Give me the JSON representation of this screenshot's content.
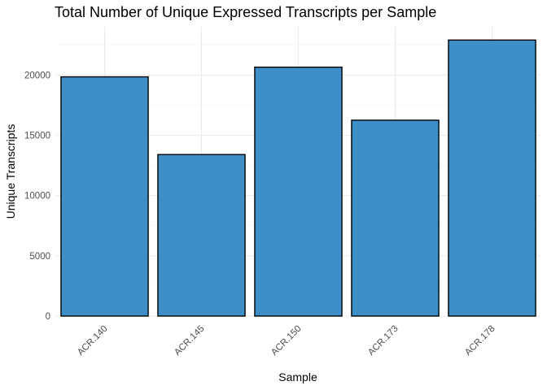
{
  "chart_data": {
    "type": "bar",
    "title": "Total Number of Unique Expressed Transcripts per Sample",
    "xlabel": "Sample",
    "ylabel": "Unique Transcripts",
    "categories": [
      "ACR.140",
      "ACR.145",
      "ACR.150",
      "ACR.173",
      "ACR.178"
    ],
    "values": [
      19850,
      13400,
      20650,
      16250,
      22900
    ],
    "ylim": [
      0,
      24000
    ],
    "yticks": [
      0,
      5000,
      10000,
      15000,
      20000
    ],
    "ytick_labels": [
      "0",
      "5000",
      "10000",
      "15000",
      "20000"
    ],
    "grid": true,
    "legend": "none",
    "bar_color": "#3E8FC8",
    "bar_outline": "#000000"
  }
}
